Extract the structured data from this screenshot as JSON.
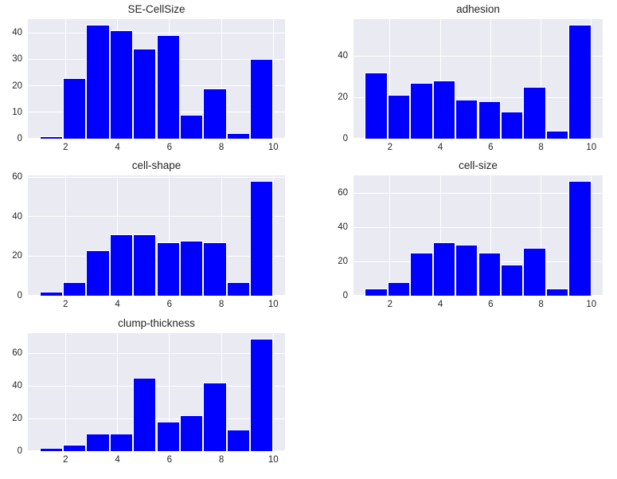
{
  "figure": {
    "kind": "histogram-grid",
    "background": "#ffffff",
    "axes_background": "#eaeaf2",
    "grid_color": "#ffffff",
    "bar_color": "#0000ff",
    "bar_edge_color": "#ffffff",
    "text_color": "#262626"
  },
  "chart_data": [
    {
      "type": "bar",
      "title": "SE-CellSize",
      "bin_start": 1,
      "bin_width": 0.9,
      "bin_count": 10,
      "bin_edges": [
        1,
        1.9,
        2.8,
        3.7,
        4.6,
        5.5,
        6.4,
        7.3,
        8.2,
        9.1,
        10
      ],
      "values": [
        1,
        23,
        43,
        41,
        34,
        39,
        9,
        19,
        2,
        30
      ],
      "x_ticks": [
        2,
        4,
        6,
        8,
        10
      ],
      "y_ticks": [
        0,
        10,
        20,
        30,
        40
      ],
      "xlim": [
        0.55,
        10.45
      ],
      "ylim": [
        0,
        45.15
      ],
      "xlabel": "",
      "ylabel": "",
      "grid": true,
      "legend": "none"
    },
    {
      "type": "bar",
      "title": "adhesion",
      "bin_start": 1,
      "bin_width": 0.9,
      "bin_count": 10,
      "bin_edges": [
        1,
        1.9,
        2.8,
        3.7,
        4.6,
        5.5,
        6.4,
        7.3,
        8.2,
        9.1,
        10
      ],
      "values": [
        32,
        21,
        27,
        28,
        19,
        18,
        13,
        25,
        4,
        55
      ],
      "x_ticks": [
        2,
        4,
        6,
        8,
        10
      ],
      "y_ticks": [
        0,
        20,
        40
      ],
      "xlim": [
        0.55,
        10.45
      ],
      "ylim": [
        0,
        57.75
      ],
      "xlabel": "",
      "ylabel": "",
      "grid": true,
      "legend": "none"
    },
    {
      "type": "bar",
      "title": "cell-shape",
      "bin_start": 1,
      "bin_width": 0.9,
      "bin_count": 10,
      "bin_edges": [
        1,
        1.9,
        2.8,
        3.7,
        4.6,
        5.5,
        6.4,
        7.3,
        8.2,
        9.1,
        10
      ],
      "values": [
        2,
        7,
        23,
        31,
        31,
        27,
        28,
        27,
        7,
        58
      ],
      "x_ticks": [
        2,
        4,
        6,
        8,
        10
      ],
      "y_ticks": [
        0,
        20,
        40,
        60
      ],
      "xlim": [
        0.55,
        10.45
      ],
      "ylim": [
        0,
        60.9
      ],
      "xlabel": "",
      "ylabel": "",
      "grid": true,
      "legend": "none"
    },
    {
      "type": "bar",
      "title": "cell-size",
      "bin_start": 1,
      "bin_width": 0.9,
      "bin_count": 10,
      "bin_edges": [
        1,
        1.9,
        2.8,
        3.7,
        4.6,
        5.5,
        6.4,
        7.3,
        8.2,
        9.1,
        10
      ],
      "values": [
        4,
        8,
        25,
        31,
        30,
        25,
        18,
        28,
        4,
        67
      ],
      "x_ticks": [
        2,
        4,
        6,
        8,
        10
      ],
      "y_ticks": [
        0,
        20,
        40,
        60
      ],
      "xlim": [
        0.55,
        10.45
      ],
      "ylim": [
        0,
        70.35
      ],
      "xlabel": "",
      "ylabel": "",
      "grid": true,
      "legend": "none"
    },
    {
      "type": "bar",
      "title": "clump-thickness",
      "bin_start": 1,
      "bin_width": 0.9,
      "bin_count": 10,
      "bin_edges": [
        1,
        1.9,
        2.8,
        3.7,
        4.6,
        5.5,
        6.4,
        7.3,
        8.2,
        9.1,
        10
      ],
      "values": [
        2,
        4,
        11,
        11,
        45,
        18,
        22,
        42,
        13,
        69
      ],
      "x_ticks": [
        2,
        4,
        6,
        8,
        10
      ],
      "y_ticks": [
        0,
        20,
        40,
        60
      ],
      "xlim": [
        0.55,
        10.45
      ],
      "ylim": [
        0,
        72.45
      ],
      "xlabel": "",
      "ylabel": "",
      "grid": true,
      "legend": "none"
    }
  ]
}
